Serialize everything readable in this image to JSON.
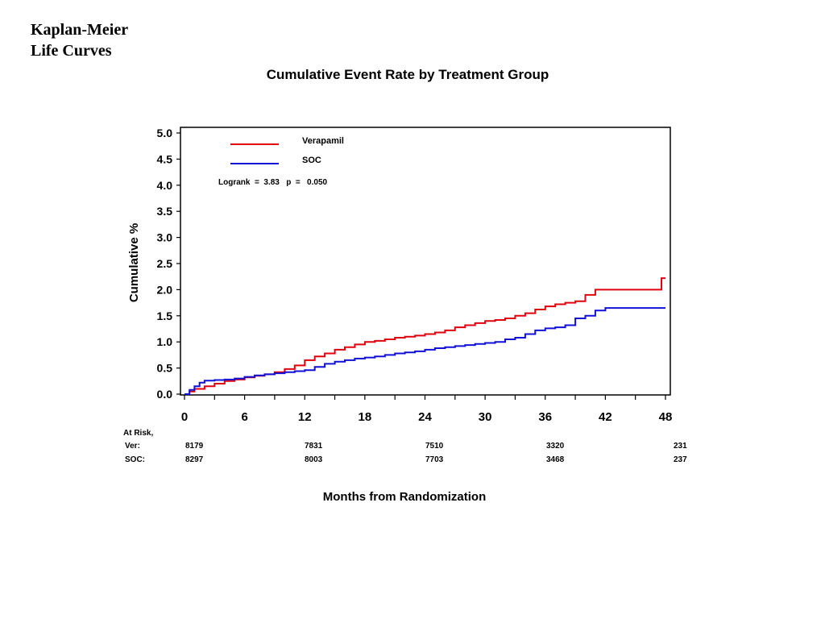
{
  "slide": {
    "heading_line1": "Kaplan-Meier",
    "heading_line2": "Life Curves"
  },
  "chart_data": {
    "type": "line",
    "title": "Cumulative Event Rate by Treatment Group",
    "xlabel": "Months from Randomization",
    "ylabel": "Cumulative %",
    "xlim": [
      0,
      48
    ],
    "ylim": [
      0,
      5.0
    ],
    "x_ticks": [
      0,
      6,
      12,
      18,
      24,
      30,
      36,
      42,
      48
    ],
    "y_ticks": [
      "0.0",
      "0.5",
      "1.0",
      "1.5",
      "2.0",
      "2.5",
      "3.0",
      "3.5",
      "4.0",
      "4.5",
      "5.0"
    ],
    "annotation": "Logrank  =  3.83   p  =   0.050",
    "legend_position": "top-left",
    "series": [
      {
        "name": "Verapamil",
        "color": "#e0000e",
        "points": [
          [
            0,
            0
          ],
          [
            0.5,
            0.05
          ],
          [
            1,
            0.1
          ],
          [
            2,
            0.15
          ],
          [
            3,
            0.2
          ],
          [
            4,
            0.25
          ],
          [
            5,
            0.28
          ],
          [
            6,
            0.32
          ],
          [
            7,
            0.35
          ],
          [
            8,
            0.38
          ],
          [
            9,
            0.42
          ],
          [
            10,
            0.48
          ],
          [
            11,
            0.55
          ],
          [
            12,
            0.65
          ],
          [
            13,
            0.72
          ],
          [
            14,
            0.78
          ],
          [
            15,
            0.85
          ],
          [
            16,
            0.9
          ],
          [
            17,
            0.95
          ],
          [
            18,
            1.0
          ],
          [
            19,
            1.02
          ],
          [
            20,
            1.05
          ],
          [
            21,
            1.08
          ],
          [
            22,
            1.1
          ],
          [
            23,
            1.12
          ],
          [
            24,
            1.15
          ],
          [
            25,
            1.18
          ],
          [
            26,
            1.22
          ],
          [
            27,
            1.28
          ],
          [
            28,
            1.32
          ],
          [
            29,
            1.36
          ],
          [
            30,
            1.4
          ],
          [
            31,
            1.42
          ],
          [
            32,
            1.45
          ],
          [
            33,
            1.5
          ],
          [
            34,
            1.55
          ],
          [
            35,
            1.62
          ],
          [
            36,
            1.68
          ],
          [
            37,
            1.72
          ],
          [
            38,
            1.75
          ],
          [
            39,
            1.78
          ],
          [
            40,
            1.9
          ],
          [
            41,
            2.0
          ],
          [
            42,
            2.0
          ],
          [
            43,
            2.0
          ],
          [
            44,
            2.0
          ],
          [
            45,
            2.0
          ],
          [
            46,
            2.0
          ],
          [
            47.5,
            2.0
          ],
          [
            47.6,
            2.22
          ],
          [
            48,
            2.22
          ]
        ]
      },
      {
        "name": "SOC",
        "color": "#1010d8",
        "points": [
          [
            0,
            0
          ],
          [
            0.5,
            0.08
          ],
          [
            1,
            0.15
          ],
          [
            1.5,
            0.22
          ],
          [
            2,
            0.26
          ],
          [
            3,
            0.27
          ],
          [
            4,
            0.28
          ],
          [
            5,
            0.3
          ],
          [
            6,
            0.33
          ],
          [
            7,
            0.36
          ],
          [
            8,
            0.38
          ],
          [
            9,
            0.4
          ],
          [
            10,
            0.42
          ],
          [
            11,
            0.44
          ],
          [
            12,
            0.46
          ],
          [
            13,
            0.52
          ],
          [
            14,
            0.58
          ],
          [
            15,
            0.62
          ],
          [
            16,
            0.65
          ],
          [
            17,
            0.68
          ],
          [
            18,
            0.7
          ],
          [
            19,
            0.72
          ],
          [
            20,
            0.75
          ],
          [
            21,
            0.78
          ],
          [
            22,
            0.8
          ],
          [
            23,
            0.82
          ],
          [
            24,
            0.85
          ],
          [
            25,
            0.88
          ],
          [
            26,
            0.9
          ],
          [
            27,
            0.92
          ],
          [
            28,
            0.94
          ],
          [
            29,
            0.96
          ],
          [
            30,
            0.98
          ],
          [
            31,
            1.0
          ],
          [
            32,
            1.05
          ],
          [
            33,
            1.08
          ],
          [
            34,
            1.15
          ],
          [
            35,
            1.22
          ],
          [
            36,
            1.26
          ],
          [
            37,
            1.28
          ],
          [
            38,
            1.32
          ],
          [
            39,
            1.45
          ],
          [
            40,
            1.5
          ],
          [
            41,
            1.6
          ],
          [
            42,
            1.65
          ],
          [
            44,
            1.65
          ],
          [
            46,
            1.65
          ],
          [
            48,
            1.65
          ]
        ]
      }
    ],
    "at_risk": {
      "label": "At Risk,",
      "at_months": [
        0,
        12,
        24,
        36,
        48
      ],
      "rows": [
        {
          "label": "Ver:",
          "values": [
            "8179",
            "7831",
            "7510",
            "3320",
            "231"
          ]
        },
        {
          "label": "SOC:",
          "values": [
            "8297",
            "8003",
            "7703",
            "3468",
            "237"
          ]
        }
      ]
    }
  }
}
